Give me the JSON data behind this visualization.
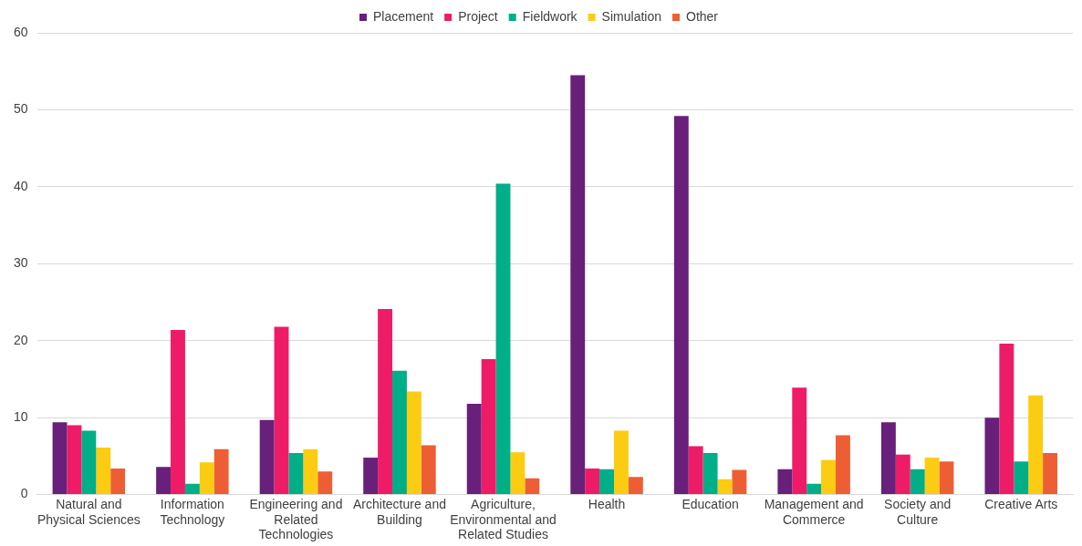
{
  "chart_data": {
    "type": "bar",
    "categories": [
      "Natural and Physical Sciences",
      "Information Technology",
      "Engineering and Related Technologies",
      "Architecture and Building",
      "Agriculture, Environmental and Related Studies",
      "Health",
      "Education",
      "Management and Commerce",
      "Society and Culture",
      "Creative Arts"
    ],
    "series": [
      {
        "name": "Placement",
        "color": "#68207a",
        "values": [
          9.4,
          3.6,
          9.7,
          4.8,
          11.8,
          54.5,
          49.2,
          3.3,
          9.4,
          10.0
        ]
      },
      {
        "name": "Project",
        "color": "#ee1c66",
        "values": [
          9.0,
          21.4,
          21.8,
          24.1,
          17.6,
          3.4,
          6.3,
          13.9,
          5.2,
          19.6
        ]
      },
      {
        "name": "Fieldwork",
        "color": "#00ae88",
        "values": [
          8.3,
          1.4,
          5.4,
          16.1,
          40.4,
          3.3,
          5.4,
          1.4,
          3.3,
          4.3
        ]
      },
      {
        "name": "Simulation",
        "color": "#fbcc11",
        "values": [
          6.1,
          4.2,
          5.9,
          13.4,
          5.5,
          8.3,
          2.0,
          4.5,
          4.8,
          12.9
        ]
      },
      {
        "name": "Other",
        "color": "#ee5e35",
        "values": [
          3.4,
          5.9,
          3.0,
          6.4,
          2.1,
          2.3,
          3.2,
          7.7,
          4.3,
          5.4
        ]
      }
    ],
    "ylim": [
      0,
      60
    ],
    "yticks": [
      0,
      10,
      20,
      30,
      40,
      50,
      60
    ],
    "grid": "y",
    "legend": "top"
  }
}
